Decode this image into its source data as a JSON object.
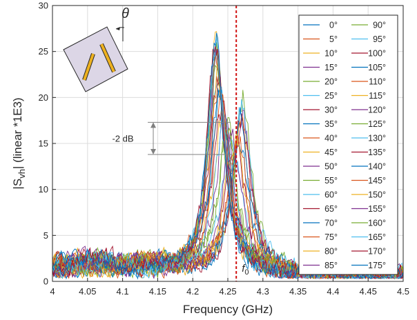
{
  "chart_data": {
    "type": "line",
    "xlabel": "Frequency (GHz)",
    "ylabel_main": "|S",
    "ylabel_sub": "vh",
    "ylabel_rest": "| (linear *1E3)",
    "xlim": [
      4.0,
      4.5
    ],
    "ylim": [
      0,
      30
    ],
    "xticks": [
      "4",
      "4.05",
      "4.1",
      "4.15",
      "4.2",
      "4.25",
      "4.3",
      "4.35",
      "4.4",
      "4.45",
      "4.5"
    ],
    "yticks": [
      "0",
      "5",
      "10",
      "15",
      "20",
      "25",
      "30"
    ],
    "grid": true,
    "legend_position": "top-right",
    "marker_line": {
      "x": 4.262,
      "label_main": "f",
      "label_sub": "0",
      "color": "#d01010"
    },
    "annotation": {
      "text": "-2 dB",
      "y_top": 17.3,
      "y_bottom": 13.8
    },
    "inset_angle_label": "θ",
    "series_colors": [
      "#0072BD",
      "#D95319",
      "#EDB120",
      "#7E2F8E",
      "#77AC30",
      "#4DBEEE",
      "#A2142F"
    ],
    "series": [
      {
        "name": "0°",
        "peak_x": 4.232,
        "peak_y": 26.0,
        "width": 0.028
      },
      {
        "name": "5°",
        "peak_x": 4.232,
        "peak_y": 25.5,
        "width": 0.029
      },
      {
        "name": "10°",
        "peak_x": 4.233,
        "peak_y": 25.0,
        "width": 0.029
      },
      {
        "name": "15°",
        "peak_x": 4.233,
        "peak_y": 24.2,
        "width": 0.03
      },
      {
        "name": "20°",
        "peak_x": 4.234,
        "peak_y": 23.4,
        "width": 0.03
      },
      {
        "name": "25°",
        "peak_x": 4.235,
        "peak_y": 22.5,
        "width": 0.031
      },
      {
        "name": "30°",
        "peak_x": 4.236,
        "peak_y": 21.6,
        "width": 0.031
      },
      {
        "name": "35°",
        "peak_x": 4.238,
        "peak_y": 20.5,
        "width": 0.032
      },
      {
        "name": "40°",
        "peak_x": 4.24,
        "peak_y": 19.4,
        "width": 0.032
      },
      {
        "name": "45°",
        "peak_x": 4.243,
        "peak_y": 18.2,
        "width": 0.033
      },
      {
        "name": "50°",
        "peak_x": 4.246,
        "peak_y": 17.2,
        "width": 0.033
      },
      {
        "name": "55°",
        "peak_x": 4.25,
        "peak_y": 16.2,
        "width": 0.034
      },
      {
        "name": "60°",
        "peak_x": 4.255,
        "peak_y": 15.5,
        "width": 0.034
      },
      {
        "name": "65°",
        "peak_x": 4.26,
        "peak_y": 15.2,
        "width": 0.034
      },
      {
        "name": "70°",
        "peak_x": 4.264,
        "peak_y": 15.6,
        "width": 0.033
      },
      {
        "name": "75°",
        "peak_x": 4.267,
        "peak_y": 16.5,
        "width": 0.033
      },
      {
        "name": "80°",
        "peak_x": 4.269,
        "peak_y": 17.4,
        "width": 0.032
      },
      {
        "name": "85°",
        "peak_x": 4.27,
        "peak_y": 18.2,
        "width": 0.032
      },
      {
        "name": "90°",
        "peak_x": 4.271,
        "peak_y": 20.0,
        "width": 0.032
      },
      {
        "name": "95°",
        "peak_x": 4.27,
        "peak_y": 19.2,
        "width": 0.032
      },
      {
        "name": "100°",
        "peak_x": 4.269,
        "peak_y": 18.0,
        "width": 0.032
      },
      {
        "name": "105°",
        "peak_x": 4.267,
        "peak_y": 17.0,
        "width": 0.033
      },
      {
        "name": "110°",
        "peak_x": 4.263,
        "peak_y": 16.0,
        "width": 0.033
      },
      {
        "name": "115°",
        "peak_x": 4.259,
        "peak_y": 15.3,
        "width": 0.034
      },
      {
        "name": "120°",
        "peak_x": 4.254,
        "peak_y": 15.5,
        "width": 0.034
      },
      {
        "name": "125°",
        "peak_x": 4.249,
        "peak_y": 16.3,
        "width": 0.034
      },
      {
        "name": "130°",
        "peak_x": 4.245,
        "peak_y": 17.3,
        "width": 0.033
      },
      {
        "name": "135°",
        "peak_x": 4.242,
        "peak_y": 18.5,
        "width": 0.033
      },
      {
        "name": "140°",
        "peak_x": 4.239,
        "peak_y": 19.8,
        "width": 0.032
      },
      {
        "name": "145°",
        "peak_x": 4.237,
        "peak_y": 21.0,
        "width": 0.031
      },
      {
        "name": "150°",
        "peak_x": 4.235,
        "peak_y": 22.2,
        "width": 0.031
      },
      {
        "name": "155°",
        "peak_x": 4.234,
        "peak_y": 23.2,
        "width": 0.03
      },
      {
        "name": "160°",
        "peak_x": 4.233,
        "peak_y": 24.0,
        "width": 0.03
      },
      {
        "name": "165°",
        "peak_x": 4.233,
        "peak_y": 24.8,
        "width": 0.029
      },
      {
        "name": "170°",
        "peak_x": 4.232,
        "peak_y": 25.4,
        "width": 0.029
      },
      {
        "name": "175°",
        "peak_x": 4.232,
        "peak_y": 25.9,
        "width": 0.028
      }
    ]
  }
}
